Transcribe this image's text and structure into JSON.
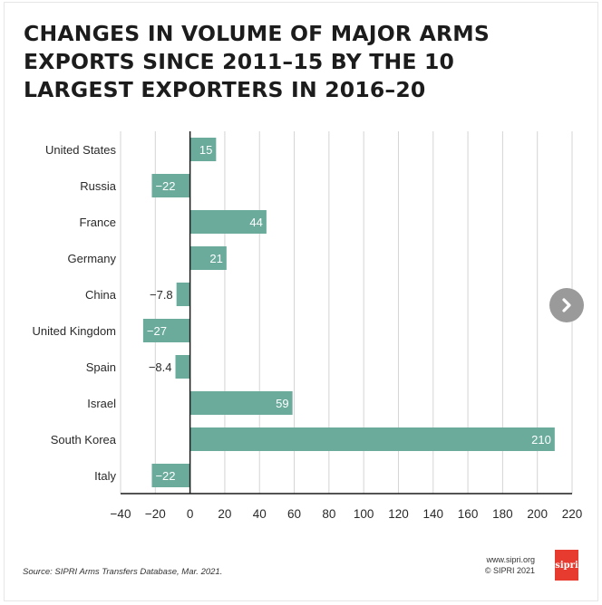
{
  "title_lines": [
    "CHANGES IN VOLUME OF MAJOR ARMS",
    "EXPORTS SINCE 2011–15 BY THE 10",
    "LARGEST EXPORTERS IN 2016–20"
  ],
  "chart_data": {
    "type": "bar",
    "orientation": "horizontal",
    "categories": [
      "United States",
      "Russia",
      "France",
      "Germany",
      "China",
      "United Kingdom",
      "Spain",
      "Israel",
      "South Korea",
      "Italy"
    ],
    "values": [
      15,
      -22,
      44,
      21,
      -7.8,
      -27,
      -8.4,
      59,
      210,
      -22
    ],
    "value_labels": [
      "15",
      "−22",
      "44",
      "21",
      "−7.8",
      "−27",
      "−8.4",
      "59",
      "210",
      "−22"
    ],
    "xlim": [
      -40,
      220
    ],
    "xticks": [
      -40,
      -20,
      0,
      20,
      40,
      60,
      80,
      100,
      120,
      140,
      160,
      180,
      200,
      220
    ],
    "xtick_labels": [
      "−40",
      "−20",
      "0",
      "20",
      "40",
      "60",
      "80",
      "100",
      "120",
      "140",
      "160",
      "180",
      "200",
      "220"
    ],
    "grid": true,
    "bar_color": "#6aab9c",
    "grid_color": "#d4d4d4",
    "axis_color": "#1a1a1a"
  },
  "source": "Source: SIPRI Arms Transfers Database, Mar. 2021.",
  "credit": {
    "url": "www.sipri.org",
    "copyright": "© SIPRI 2021"
  },
  "logo_text": "sipri",
  "nav": {
    "icon": "chevron-right-icon"
  }
}
